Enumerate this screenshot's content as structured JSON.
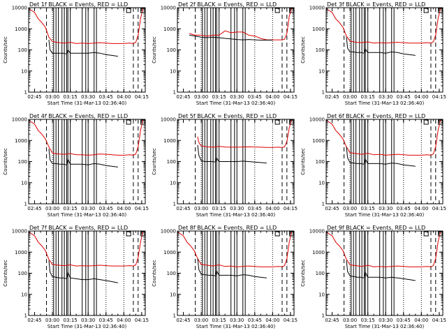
{
  "chart_data": {
    "type": "line",
    "layout": "3x3 small multiples",
    "ylabel": "Counts/sec",
    "xlabel": "Start Time (31-Mar-13 02:36:40)",
    "y_scale": "log",
    "ylim": [
      1,
      10000
    ],
    "xlim": [
      "02:40",
      "04:18"
    ],
    "y_ticks": [
      "1",
      "10",
      "100",
      "1000",
      "10000"
    ],
    "x_ticks": [
      "02:45",
      "03:00",
      "03:15",
      "03:30",
      "03:45",
      "04:00",
      "04:15"
    ],
    "series_colors": {
      "events": "#000000",
      "lld": "#e00000"
    },
    "solid_vlines": [
      "03:01",
      "03:03",
      "03:05",
      "03:08",
      "03:10",
      "03:12",
      "03:13",
      "03:15",
      "03:25",
      "03:28",
      "03:30",
      "03:35",
      "03:37"
    ],
    "dashed_vlines": [
      "02:55",
      "04:08",
      "04:12"
    ],
    "dotted_vlines": [
      "03:00",
      "03:45",
      "04:00"
    ],
    "panels": [
      {
        "title": "Det 1f BLACK = Events, RED = LLD",
        "events": {
          "x": [
            "02:57",
            "02:58",
            "03:00",
            "03:03",
            "03:06",
            "03:09",
            "03:12",
            "03:13",
            "03:15",
            "03:20",
            "03:25",
            "03:30",
            "03:35",
            "03:40",
            "03:45",
            "03:50",
            "03:55"
          ],
          "y": [
            300,
            100,
            70,
            70,
            70,
            70,
            65,
            100,
            70,
            70,
            70,
            70,
            75,
            70,
            60,
            55,
            50
          ]
        },
        "lld": {
          "x": [
            "02:40",
            "02:45",
            "02:48",
            "02:51",
            "02:54",
            "02:57",
            "03:00",
            "03:05",
            "03:10",
            "03:15",
            "03:20",
            "03:25",
            "03:30",
            "03:35",
            "03:40",
            "03:45",
            "03:50",
            "03:55",
            "04:00",
            "04:05",
            "04:08",
            "04:10",
            "04:12",
            "04:14",
            "04:16"
          ],
          "y": [
            9000,
            6000,
            3000,
            2000,
            1200,
            400,
            250,
            220,
            210,
            230,
            200,
            210,
            200,
            210,
            220,
            210,
            200,
            200,
            200,
            210,
            200,
            230,
            500,
            3000,
            9000
          ]
        }
      },
      {
        "title": "Det 2f BLACK = Events, RED = LLD",
        "events": {
          "x": [
            "02:50",
            "02:55",
            "03:00",
            "03:05",
            "03:10",
            "03:15",
            "03:20",
            "03:25",
            "03:30",
            "03:35",
            "03:40",
            "03:45",
            "03:50",
            "03:55",
            "04:00"
          ],
          "y": [
            500,
            450,
            400,
            380,
            400,
            380,
            350,
            330,
            310,
            300,
            310,
            300,
            290,
            290,
            290
          ]
        },
        "lld": {
          "x": [
            "02:50",
            "02:55",
            "03:00",
            "03:05",
            "03:10",
            "03:15",
            "03:20",
            "03:25",
            "03:30",
            "03:35",
            "03:40",
            "03:45",
            "03:50",
            "03:55",
            "04:00",
            "04:05",
            "04:08",
            "04:10",
            "04:12",
            "04:14",
            "04:16"
          ],
          "y": [
            600,
            500,
            500,
            450,
            500,
            500,
            800,
            650,
            700,
            700,
            500,
            450,
            350,
            300,
            300,
            300,
            300,
            320,
            600,
            4000,
            9000
          ]
        }
      },
      {
        "title": "Det 3f BLACK = Events, RED = LLD",
        "events": {
          "x": [
            "02:57",
            "02:58",
            "03:00",
            "03:03",
            "03:06",
            "03:09",
            "03:12",
            "03:13",
            "03:15",
            "03:20",
            "03:25",
            "03:30",
            "03:35",
            "03:40",
            "03:45",
            "03:50",
            "03:55"
          ],
          "y": [
            400,
            120,
            80,
            80,
            75,
            75,
            70,
            110,
            75,
            75,
            75,
            70,
            80,
            75,
            65,
            60,
            55
          ]
        },
        "lld": {
          "x": [
            "02:40",
            "02:45",
            "02:48",
            "02:51",
            "02:54",
            "02:57",
            "03:00",
            "03:05",
            "03:10",
            "03:15",
            "03:20",
            "03:25",
            "03:30",
            "03:35",
            "03:40",
            "03:45",
            "03:50",
            "03:55",
            "04:00",
            "04:05",
            "04:08",
            "04:10",
            "04:12",
            "04:14",
            "04:16"
          ],
          "y": [
            9000,
            6000,
            3000,
            2000,
            1200,
            450,
            260,
            230,
            220,
            240,
            210,
            220,
            210,
            220,
            230,
            220,
            210,
            210,
            210,
            220,
            210,
            240,
            500,
            3000,
            9000
          ]
        }
      },
      {
        "title": "Det 4f BLACK = Events, RED = LLD",
        "events": {
          "x": [
            "02:57",
            "02:58",
            "03:00",
            "03:03",
            "03:06",
            "03:09",
            "03:12",
            "03:13",
            "03:15",
            "03:20",
            "03:25",
            "03:30",
            "03:35",
            "03:40",
            "03:45",
            "03:50",
            "03:55"
          ],
          "y": [
            400,
            120,
            80,
            80,
            75,
            75,
            70,
            130,
            75,
            75,
            75,
            70,
            80,
            75,
            65,
            60,
            55
          ]
        },
        "lld": {
          "x": [
            "02:40",
            "02:45",
            "02:48",
            "02:51",
            "02:54",
            "02:57",
            "03:00",
            "03:05",
            "03:10",
            "03:15",
            "03:20",
            "03:25",
            "03:30",
            "03:35",
            "03:40",
            "03:45",
            "03:50",
            "03:55",
            "04:00",
            "04:05",
            "04:08",
            "04:10",
            "04:12",
            "04:14",
            "04:16"
          ],
          "y": [
            9000,
            6000,
            3000,
            2000,
            1200,
            500,
            250,
            230,
            220,
            240,
            210,
            210,
            200,
            210,
            230,
            220,
            210,
            200,
            200,
            210,
            200,
            230,
            500,
            3000,
            9000
          ]
        }
      },
      {
        "title": "Det 5f BLACK = Events, RED = LLD",
        "events": {
          "x": [
            "02:57",
            "02:58",
            "03:00",
            "03:03",
            "03:06",
            "03:09",
            "03:12",
            "03:13",
            "03:15",
            "03:20",
            "03:25",
            "03:30",
            "03:35",
            "03:40",
            "03:45",
            "03:50",
            "03:55"
          ],
          "y": [
            600,
            200,
            110,
            100,
            100,
            100,
            95,
            150,
            100,
            100,
            100,
            100,
            105,
            100,
            95,
            90,
            85
          ]
        },
        "lld": {
          "x": [
            "02:57",
            "02:58",
            "03:00",
            "03:05",
            "03:10",
            "03:15",
            "03:20",
            "03:25",
            "03:30",
            "03:35",
            "03:40",
            "03:45",
            "03:50",
            "03:55",
            "04:00",
            "04:05",
            "04:08",
            "04:10",
            "04:12",
            "04:14",
            "04:16"
          ],
          "y": [
            1500,
            800,
            550,
            500,
            480,
            520,
            490,
            480,
            480,
            490,
            500,
            490,
            480,
            470,
            470,
            480,
            470,
            500,
            900,
            4000,
            9000
          ]
        }
      },
      {
        "title": "Det 6f BLACK = Events, RED = LLD",
        "events": {
          "x": [
            "02:57",
            "02:58",
            "03:00",
            "03:03",
            "03:06",
            "03:09",
            "03:12",
            "03:13",
            "03:15",
            "03:20",
            "03:25",
            "03:30",
            "03:35",
            "03:40",
            "03:45",
            "03:50",
            "03:55"
          ],
          "y": [
            500,
            150,
            90,
            85,
            80,
            80,
            75,
            130,
            80,
            80,
            80,
            75,
            85,
            80,
            70,
            65,
            60
          ]
        },
        "lld": {
          "x": [
            "02:40",
            "02:45",
            "02:48",
            "02:51",
            "02:54",
            "02:57",
            "03:00",
            "03:05",
            "03:10",
            "03:15",
            "03:20",
            "03:25",
            "03:30",
            "03:35",
            "03:40",
            "03:45",
            "03:50",
            "03:55",
            "04:00",
            "04:05",
            "04:08",
            "04:10",
            "04:12",
            "04:14",
            "04:16"
          ],
          "y": [
            9000,
            6000,
            3000,
            2000,
            1200,
            500,
            260,
            240,
            220,
            250,
            210,
            220,
            200,
            210,
            220,
            210,
            200,
            200,
            200,
            210,
            200,
            230,
            500,
            3000,
            9000
          ]
        }
      },
      {
        "title": "Det 7f BLACK = Events, RED = LLD",
        "events": {
          "x": [
            "02:57",
            "02:58",
            "03:00",
            "03:03",
            "03:06",
            "03:09",
            "03:12",
            "03:13",
            "03:15",
            "03:20",
            "03:25",
            "03:30",
            "03:35",
            "03:40",
            "03:45",
            "03:50",
            "03:55"
          ],
          "y": [
            400,
            110,
            70,
            65,
            60,
            60,
            55,
            110,
            60,
            55,
            50,
            50,
            55,
            50,
            45,
            40,
            35
          ]
        },
        "lld": {
          "x": [
            "02:40",
            "02:45",
            "02:48",
            "02:51",
            "02:54",
            "02:57",
            "03:00",
            "03:05",
            "03:10",
            "03:15",
            "03:20",
            "03:25",
            "03:30",
            "03:35",
            "03:40",
            "03:45",
            "03:50",
            "03:55",
            "04:00",
            "04:05",
            "04:08",
            "04:10",
            "04:12",
            "04:14",
            "04:16"
          ],
          "y": [
            9000,
            6000,
            3000,
            2000,
            1200,
            450,
            260,
            240,
            230,
            250,
            220,
            230,
            220,
            230,
            240,
            230,
            220,
            220,
            220,
            230,
            220,
            250,
            550,
            3000,
            9000
          ]
        }
      },
      {
        "title": "Det 8f BLACK = Events, RED = LLD",
        "events": {
          "x": [
            "02:57",
            "02:58",
            "03:00",
            "03:03",
            "03:06",
            "03:09",
            "03:12",
            "03:13",
            "03:15",
            "03:20",
            "03:25",
            "03:30",
            "03:35",
            "03:40",
            "03:45",
            "03:50",
            "03:55"
          ],
          "y": [
            500,
            150,
            90,
            85,
            80,
            80,
            75,
            130,
            80,
            80,
            80,
            75,
            85,
            80,
            70,
            65,
            60
          ]
        },
        "lld": {
          "x": [
            "02:40",
            "02:45",
            "02:48",
            "02:51",
            "02:54",
            "02:57",
            "03:00",
            "03:05",
            "03:10",
            "03:15",
            "03:20",
            "03:25",
            "03:30",
            "03:35",
            "03:40",
            "03:45",
            "03:50",
            "03:55",
            "04:00",
            "04:05",
            "04:08",
            "04:10",
            "04:12",
            "04:14",
            "04:16"
          ],
          "y": [
            9000,
            6000,
            3000,
            2000,
            1200,
            500,
            260,
            240,
            220,
            250,
            210,
            220,
            200,
            210,
            220,
            210,
            200,
            200,
            200,
            210,
            200,
            230,
            500,
            3000,
            9000
          ]
        }
      },
      {
        "title": "Det 9f BLACK = Events, RED = LLD",
        "events": {
          "x": [
            "02:57",
            "02:58",
            "03:00",
            "03:03",
            "03:06",
            "03:09",
            "03:12",
            "03:13",
            "03:15",
            "03:20",
            "03:25",
            "03:30",
            "03:35",
            "03:40",
            "03:45",
            "03:50",
            "03:55"
          ],
          "y": [
            400,
            120,
            75,
            70,
            65,
            65,
            60,
            110,
            65,
            65,
            65,
            60,
            65,
            60,
            55,
            50,
            45
          ]
        },
        "lld": {
          "x": [
            "02:40",
            "02:45",
            "02:48",
            "02:51",
            "02:54",
            "02:57",
            "03:00",
            "03:05",
            "03:10",
            "03:15",
            "03:20",
            "03:25",
            "03:30",
            "03:35",
            "03:40",
            "03:45",
            "03:50",
            "03:55",
            "04:00",
            "04:05",
            "04:08",
            "04:10",
            "04:12",
            "04:14",
            "04:16"
          ],
          "y": [
            9000,
            6000,
            3000,
            2000,
            1200,
            450,
            250,
            230,
            210,
            240,
            200,
            210,
            200,
            210,
            220,
            210,
            200,
            200,
            200,
            210,
            200,
            230,
            500,
            3000,
            9000
          ]
        }
      }
    ]
  }
}
